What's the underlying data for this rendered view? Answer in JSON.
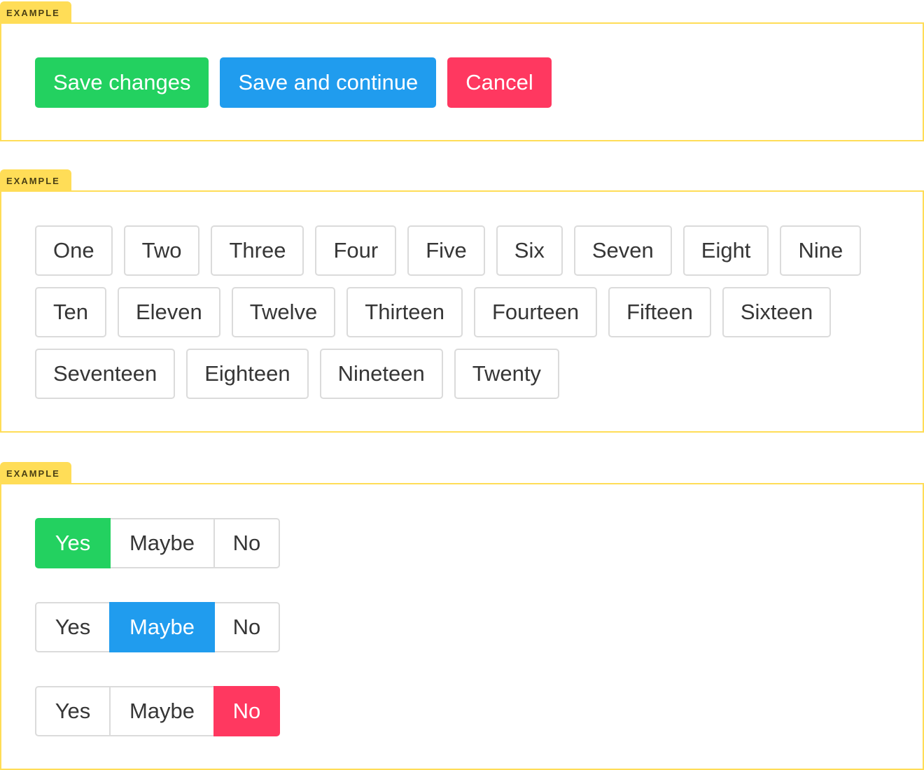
{
  "example_label": "EXAMPLE",
  "buttons": {
    "save_changes": "Save changes",
    "save_continue": "Save and continue",
    "cancel": "Cancel"
  },
  "tags": [
    "One",
    "Two",
    "Three",
    "Four",
    "Five",
    "Six",
    "Seven",
    "Eight",
    "Nine",
    "Ten",
    "Eleven",
    "Twelve",
    "Thirteen",
    "Fourteen",
    "Fifteen",
    "Sixteen",
    "Seventeen",
    "Eighteen",
    "Nineteen",
    "Twenty"
  ],
  "segmented": [
    {
      "options": [
        "Yes",
        "Maybe",
        "No"
      ],
      "selected": "Yes",
      "color": "#23d160"
    },
    {
      "options": [
        "Yes",
        "Maybe",
        "No"
      ],
      "selected": "Maybe",
      "color": "#209cee"
    },
    {
      "options": [
        "Yes",
        "Maybe",
        "No"
      ],
      "selected": "No",
      "color": "#ff3860"
    }
  ],
  "colors": {
    "success": "#23d160",
    "info": "#209cee",
    "danger": "#ff3860",
    "example_border": "#ffdd57"
  }
}
